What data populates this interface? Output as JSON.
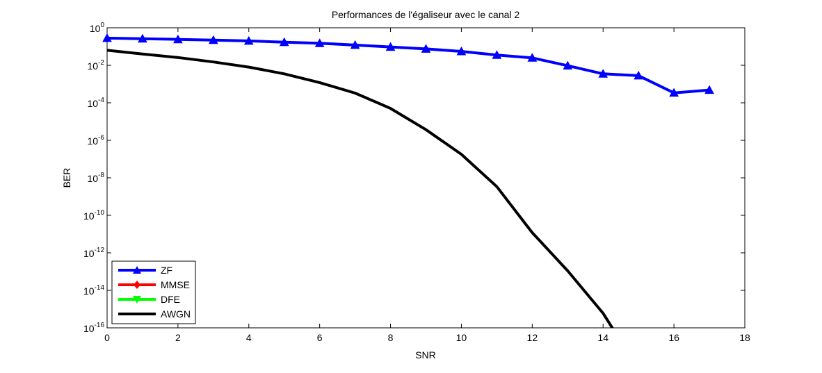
{
  "chart_data": {
    "type": "line",
    "title": "Performances de l'égaliseur avec le canal 2",
    "xlabel": "SNR",
    "ylabel": "BER",
    "xlim": [
      0,
      18
    ],
    "ylim_log10": [
      -16,
      0
    ],
    "y_scale": "log",
    "x_ticks": [
      "0",
      "2",
      "4",
      "6",
      "8",
      "10",
      "12",
      "14",
      "16",
      "18"
    ],
    "y_ticks": [
      {
        "base": "10",
        "exp": "0"
      },
      {
        "base": "10",
        "exp": "-2"
      },
      {
        "base": "10",
        "exp": "-4"
      },
      {
        "base": "10",
        "exp": "-6"
      },
      {
        "base": "10",
        "exp": "-8"
      },
      {
        "base": "10",
        "exp": "-10"
      },
      {
        "base": "10",
        "exp": "-12"
      },
      {
        "base": "10",
        "exp": "-14"
      },
      {
        "base": "10",
        "exp": "-16"
      }
    ],
    "legend_location": "bottom-left",
    "series": [
      {
        "name": "ZF",
        "color": "#0000ff",
        "marker": "triangle-up",
        "x": [
          0,
          1,
          2,
          3,
          4,
          5,
          6,
          7,
          8,
          9,
          10,
          11,
          12,
          13,
          14,
          15,
          16,
          17
        ],
        "y": [
          0.28,
          0.26,
          0.24,
          0.22,
          0.2,
          0.17,
          0.15,
          0.12,
          0.095,
          0.075,
          0.055,
          0.035,
          0.025,
          0.0095,
          0.0035,
          0.0028,
          0.00034,
          0.00048
        ]
      },
      {
        "name": "MMSE",
        "color": "#ff0000",
        "marker": "diamond",
        "x": [],
        "y": []
      },
      {
        "name": "DFE",
        "color": "#00ff00",
        "marker": "triangle-down",
        "x": [],
        "y": []
      },
      {
        "name": "AWGN",
        "color": "#000000",
        "marker": "none",
        "x": [
          0,
          1,
          2,
          3,
          4,
          5,
          6,
          7,
          8,
          9,
          10,
          11,
          12,
          13,
          14,
          15
        ],
        "y": [
          0.063,
          0.04,
          0.026,
          0.015,
          0.008,
          0.0035,
          0.0012,
          0.00033,
          5e-05,
          3.7e-06,
          1.8e-07,
          3.4e-09,
          1.2e-11,
          1.1e-13,
          6e-16,
          6e-19
        ]
      }
    ]
  }
}
